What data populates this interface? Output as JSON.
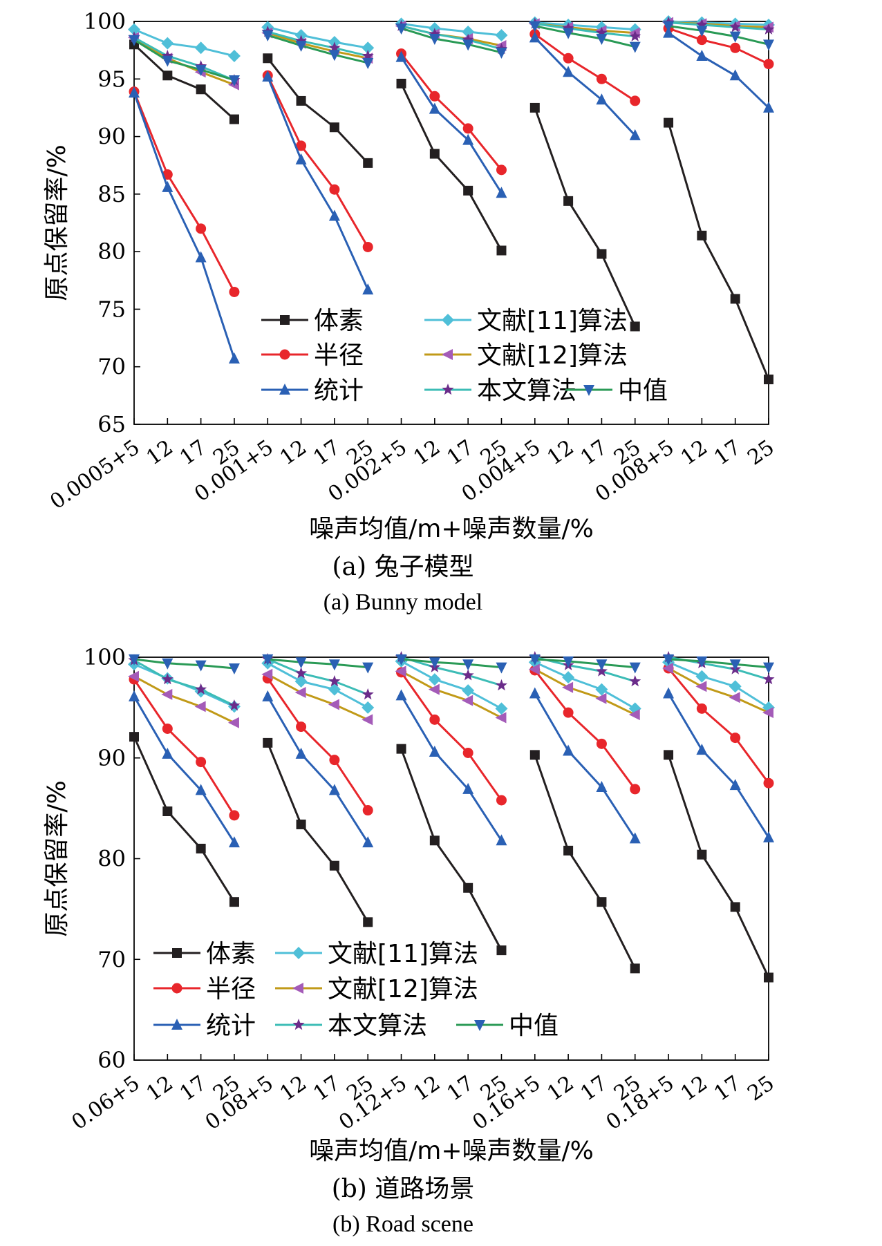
{
  "chart_data": [
    {
      "type": "line",
      "ylabel": "原点保留率/%",
      "xlabel": "噪声均值/m+噪声数量/%",
      "caption_cn": "(a) 兔子模型",
      "caption_en": "(a) Bunny model",
      "ylim": [
        65,
        100
      ],
      "yticks": [
        65,
        70,
        75,
        80,
        85,
        90,
        95,
        100
      ],
      "x_tick_labels": [
        "0.0005+5",
        "12",
        "17",
        "25",
        "0.001+5",
        "12",
        "17",
        "25",
        "0.002+5",
        "12",
        "17",
        "25",
        "0.004+5",
        "12",
        "17",
        "25",
        "0.008+5",
        "12",
        "17",
        "25"
      ],
      "legend_placement": "lower-center",
      "series": [
        {
          "name": "体素",
          "color": "#231f20",
          "marker": "square",
          "groups": [
            [
              98.0,
              95.3,
              94.1,
              91.5
            ],
            [
              96.8,
              93.1,
              90.8,
              87.7
            ],
            [
              94.6,
              88.5,
              85.3,
              80.1
            ],
            [
              92.5,
              84.4,
              79.8,
              73.5
            ],
            [
              91.2,
              81.4,
              75.9,
              68.9
            ]
          ]
        },
        {
          "name": "半径",
          "color": "#e8262b",
          "marker": "circle",
          "groups": [
            [
              93.9,
              86.7,
              82.0,
              76.5
            ],
            [
              95.3,
              89.2,
              85.4,
              80.4
            ],
            [
              97.2,
              93.5,
              90.7,
              87.1
            ],
            [
              98.9,
              96.8,
              95.0,
              93.1
            ],
            [
              99.4,
              98.4,
              97.7,
              96.3
            ]
          ]
        },
        {
          "name": "统计",
          "color": "#2a60b4",
          "marker": "triangle-up",
          "groups": [
            [
              93.8,
              85.6,
              79.5,
              70.7
            ],
            [
              95.2,
              88.0,
              83.1,
              76.7
            ],
            [
              96.9,
              92.4,
              89.7,
              85.1
            ],
            [
              98.6,
              95.6,
              93.2,
              90.1
            ],
            [
              99.0,
              97.0,
              95.3,
              92.5
            ]
          ]
        },
        {
          "name": "文献[11]算法",
          "color": "#4fbfd8",
          "marker": "diamond",
          "groups": [
            [
              99.3,
              98.1,
              97.7,
              97.0
            ],
            [
              99.5,
              98.8,
              98.2,
              97.7
            ],
            [
              99.8,
              99.4,
              99.1,
              98.8
            ],
            [
              99.9,
              99.7,
              99.5,
              99.3
            ],
            [
              100.0,
              99.9,
              99.8,
              99.7
            ]
          ]
        },
        {
          "name": "文献[12]算法",
          "color": "#c19a18",
          "marker": "triangle-left",
          "line_marker_color": "#a45bb8",
          "groups": [
            [
              98.6,
              96.8,
              95.6,
              94.5
            ],
            [
              99.0,
              98.1,
              97.4,
              96.8
            ],
            [
              99.6,
              98.9,
              98.5,
              97.9
            ],
            [
              99.8,
              99.5,
              99.2,
              99.0
            ],
            [
              99.9,
              99.8,
              99.6,
              99.5
            ]
          ]
        },
        {
          "name": "本文算法",
          "color": "#3cbcb6",
          "marker": "star",
          "marker_color": "#6b2c8a",
          "groups": [
            [
              98.6,
              97.0,
              96.1,
              94.9
            ],
            [
              99.1,
              98.3,
              97.7,
              97.0
            ],
            [
              99.6,
              98.9,
              98.4,
              97.6
            ],
            [
              99.8,
              99.4,
              99.0,
              98.7
            ],
            [
              99.9,
              99.7,
              99.5,
              99.3
            ]
          ]
        },
        {
          "name": "中值",
          "color": "#2a9a56",
          "marker": "triangle-down",
          "marker_color": "#2a60b4",
          "groups": [
            [
              98.4,
              96.6,
              95.8,
              94.9
            ],
            [
              98.8,
              97.9,
              97.1,
              96.4
            ],
            [
              99.4,
              98.5,
              98.0,
              97.3
            ],
            [
              99.6,
              99.0,
              98.5,
              97.8
            ],
            [
              99.6,
              99.2,
              98.7,
              98.0
            ]
          ]
        }
      ]
    },
    {
      "type": "line",
      "ylabel": "原点保留率/%",
      "xlabel": "噪声均值/m+噪声数量/%",
      "caption_cn": "(b) 道路场景",
      "caption_en": "(b) Road scene",
      "ylim": [
        60,
        100
      ],
      "yticks": [
        60,
        70,
        80,
        90,
        100
      ],
      "x_tick_labels": [
        "0.06+5",
        "12",
        "17",
        "25",
        "0.08+5",
        "12",
        "17",
        "25",
        "0.12+5",
        "12",
        "17",
        "25",
        "0.16+5",
        "12",
        "17",
        "25",
        "0.18+5",
        "12",
        "17",
        "25"
      ],
      "legend_placement": "lower-left",
      "series": [
        {
          "name": "体素",
          "color": "#231f20",
          "marker": "square",
          "groups": [
            [
              92.1,
              84.7,
              81.0,
              75.7
            ],
            [
              91.5,
              83.4,
              79.3,
              73.7
            ],
            [
              90.9,
              81.8,
              77.1,
              70.9
            ],
            [
              90.3,
              80.8,
              75.7,
              69.1
            ],
            [
              90.3,
              80.4,
              75.2,
              68.2
            ]
          ]
        },
        {
          "name": "半径",
          "color": "#e8262b",
          "marker": "circle",
          "groups": [
            [
              97.8,
              92.9,
              89.6,
              84.3
            ],
            [
              97.9,
              93.1,
              89.8,
              84.8
            ],
            [
              98.5,
              93.8,
              90.5,
              85.8
            ],
            [
              98.7,
              94.5,
              91.4,
              86.9
            ],
            [
              98.9,
              94.9,
              92.0,
              87.5
            ]
          ]
        },
        {
          "name": "统计",
          "color": "#2a60b4",
          "marker": "triangle-up",
          "groups": [
            [
              96.1,
              90.4,
              86.8,
              81.6
            ],
            [
              96.1,
              90.4,
              86.8,
              81.6
            ],
            [
              96.2,
              90.6,
              86.9,
              81.8
            ],
            [
              96.4,
              90.7,
              87.1,
              82.0
            ],
            [
              96.4,
              90.8,
              87.3,
              82.1
            ]
          ]
        },
        {
          "name": "文献[11]算法",
          "color": "#4fbfd8",
          "marker": "diamond",
          "groups": [
            [
              99.3,
              97.9,
              96.6,
              95.1
            ],
            [
              99.4,
              97.6,
              96.8,
              95.0
            ],
            [
              99.6,
              97.8,
              96.7,
              94.9
            ],
            [
              99.5,
              98.0,
              96.8,
              94.9
            ],
            [
              99.5,
              98.1,
              97.1,
              95.0
            ]
          ]
        },
        {
          "name": "文献[12]算法",
          "color": "#c19a18",
          "marker": "triangle-left",
          "line_marker_color": "#a45bb8",
          "groups": [
            [
              98.1,
              96.3,
              95.1,
              93.5
            ],
            [
              98.3,
              96.5,
              95.3,
              93.8
            ],
            [
              98.6,
              96.8,
              95.7,
              94.0
            ],
            [
              98.8,
              97.0,
              95.9,
              94.3
            ],
            [
              98.9,
              97.1,
              96.0,
              94.5
            ]
          ]
        },
        {
          "name": "本文算法",
          "color": "#3cbcb6",
          "marker": "star",
          "marker_color": "#6b2c8a",
          "groups": [
            [
              99.7,
              97.8,
              96.8,
              95.2
            ],
            [
              99.8,
              98.4,
              97.6,
              96.3
            ],
            [
              100.0,
              99.0,
              98.2,
              97.2
            ],
            [
              100.0,
              99.2,
              98.6,
              97.6
            ],
            [
              100.0,
              99.4,
              98.8,
              97.8
            ]
          ]
        },
        {
          "name": "中值",
          "color": "#2a9a56",
          "marker": "triangle-down",
          "marker_color": "#2a60b4",
          "groups": [
            [
              99.8,
              99.4,
              99.2,
              98.9
            ],
            [
              99.8,
              99.5,
              99.3,
              99.0
            ],
            [
              99.8,
              99.5,
              99.3,
              99.0
            ],
            [
              99.8,
              99.6,
              99.3,
              99.0
            ],
            [
              99.8,
              99.6,
              99.3,
              99.0
            ]
          ]
        }
      ]
    }
  ]
}
